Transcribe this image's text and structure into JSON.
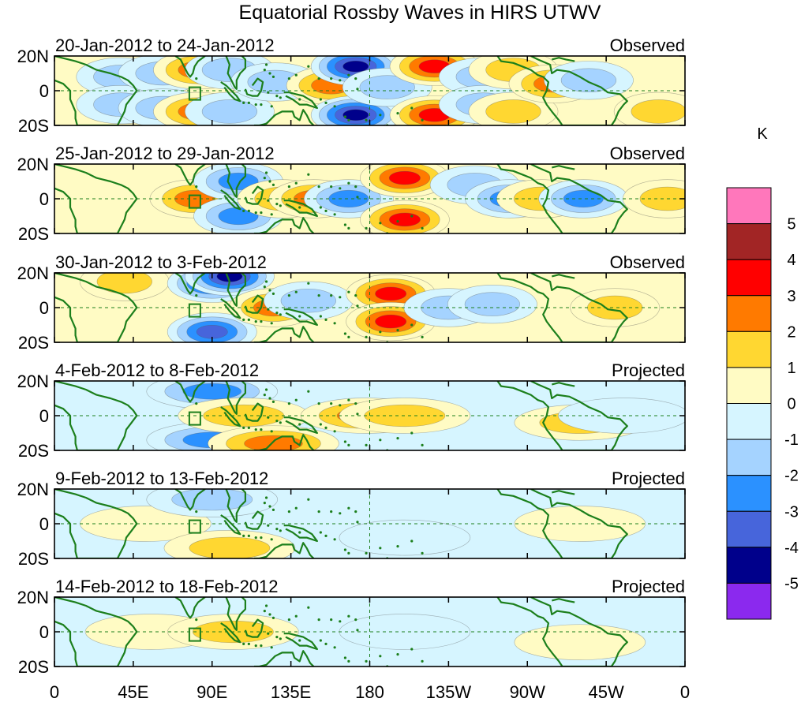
{
  "chart_data": {
    "type": "heatmap",
    "title": "Equatorial Rossby Waves in HIRS UTWV",
    "unit": "K",
    "x_ticks": [
      "0",
      "45E",
      "90E",
      "135E",
      "180",
      "135W",
      "90W",
      "45W",
      "0"
    ],
    "x_range_deg_east": [
      0,
      360
    ],
    "y_ticks": [
      "20N",
      "0",
      "20S"
    ],
    "y_range_deg": [
      -20,
      20
    ],
    "panels": [
      {
        "period": "20-Jan-2012 to 24-Jan-2012",
        "status": "Observed",
        "anomalies": [
          {
            "lon": 38,
            "lat": 8,
            "value": -1.5
          },
          {
            "lon": 38,
            "lat": -8,
            "value": -1.5
          },
          {
            "lon": 62,
            "lat": 10,
            "value": -1.5
          },
          {
            "lon": 62,
            "lat": -10,
            "value": -1.5
          },
          {
            "lon": 82,
            "lat": 12,
            "value": 2.5
          },
          {
            "lon": 82,
            "lat": -12,
            "value": 2.5
          },
          {
            "lon": 100,
            "lat": 12,
            "value": -1.5
          },
          {
            "lon": 100,
            "lat": -12,
            "value": -1.5
          },
          {
            "lon": 126,
            "lat": 5,
            "value": -1.5
          },
          {
            "lon": 158,
            "lat": 3,
            "value": 2.5
          },
          {
            "lon": 172,
            "lat": 14,
            "value": -4.5
          },
          {
            "lon": 172,
            "lat": -14,
            "value": -4.5
          },
          {
            "lon": 190,
            "lat": 2,
            "value": -1.5
          },
          {
            "lon": 217,
            "lat": 14,
            "value": 3.5
          },
          {
            "lon": 217,
            "lat": -14,
            "value": 3.5
          },
          {
            "lon": 245,
            "lat": 8,
            "value": -1.5
          },
          {
            "lon": 245,
            "lat": -8,
            "value": -1.5
          },
          {
            "lon": 262,
            "lat": 12,
            "value": 1.5
          },
          {
            "lon": 262,
            "lat": -12,
            "value": 1.5
          },
          {
            "lon": 285,
            "lat": 4,
            "value": 2.5
          },
          {
            "lon": 305,
            "lat": 6,
            "value": -1.5
          },
          {
            "lon": 345,
            "lat": -12,
            "value": 1.5
          }
        ]
      },
      {
        "period": "25-Jan-2012 to 29-Jan-2012",
        "status": "Observed",
        "anomalies": [
          {
            "lon": 80,
            "lat": 0,
            "value": 2.5
          },
          {
            "lon": 105,
            "lat": 10,
            "value": -2.5
          },
          {
            "lon": 105,
            "lat": -10,
            "value": -2.5
          },
          {
            "lon": 130,
            "lat": 0,
            "value": 1.5
          },
          {
            "lon": 148,
            "lat": 0,
            "value": 2.5
          },
          {
            "lon": 168,
            "lat": 0,
            "value": -2.5
          },
          {
            "lon": 200,
            "lat": 12,
            "value": 3.5
          },
          {
            "lon": 200,
            "lat": -12,
            "value": 3.5
          },
          {
            "lon": 240,
            "lat": 8,
            "value": -1.5
          },
          {
            "lon": 260,
            "lat": 0,
            "value": -2.5
          },
          {
            "lon": 278,
            "lat": 0,
            "value": 1.5
          },
          {
            "lon": 302,
            "lat": 0,
            "value": -2.5
          },
          {
            "lon": 350,
            "lat": 0,
            "value": 1.5
          }
        ]
      },
      {
        "period": "30-Jan-2012 to 3-Feb-2012",
        "status": "Observed",
        "anomalies": [
          {
            "lon": 40,
            "lat": 15,
            "value": 1.5
          },
          {
            "lon": 90,
            "lat": 14,
            "value": -3.5
          },
          {
            "lon": 90,
            "lat": -14,
            "value": -3.5
          },
          {
            "lon": 100,
            "lat": 18,
            "value": -4.5
          },
          {
            "lon": 125,
            "lat": 0,
            "value": 2.5
          },
          {
            "lon": 145,
            "lat": 4,
            "value": -1.5
          },
          {
            "lon": 192,
            "lat": 8,
            "value": 3.5
          },
          {
            "lon": 192,
            "lat": -8,
            "value": 3.5
          },
          {
            "lon": 225,
            "lat": 0,
            "value": -1.5
          },
          {
            "lon": 250,
            "lat": 2,
            "value": -1.5
          },
          {
            "lon": 320,
            "lat": 0,
            "value": 1.5
          }
        ]
      },
      {
        "period": "4-Feb-2012 to 8-Feb-2012",
        "status": "Projected",
        "anomalies": [
          {
            "lon": 90,
            "lat": 14,
            "value": -2.5
          },
          {
            "lon": 90,
            "lat": -14,
            "value": -2.5
          },
          {
            "lon": 108,
            "lat": 0,
            "value": 1.5
          },
          {
            "lon": 125,
            "lat": -16,
            "value": 2.5
          },
          {
            "lon": 178,
            "lat": 0,
            "value": 2.5
          },
          {
            "lon": 200,
            "lat": 0,
            "value": 1.5
          },
          {
            "lon": 300,
            "lat": -4,
            "value": 1.5
          },
          {
            "lon": 325,
            "lat": 0,
            "value": -0.5
          }
        ]
      },
      {
        "period": "9-Feb-2012 to 13-Feb-2012",
        "status": "Projected",
        "anomalies": [
          {
            "lon": 52,
            "lat": 0,
            "value": 0.5
          },
          {
            "lon": 90,
            "lat": 14,
            "value": -1.5
          },
          {
            "lon": 100,
            "lat": -14,
            "value": 1.5
          },
          {
            "lon": 200,
            "lat": -8,
            "value": -0.5
          },
          {
            "lon": 300,
            "lat": 0,
            "value": 0.5
          }
        ]
      },
      {
        "period": "14-Feb-2012 to 18-Feb-2012",
        "status": "Projected",
        "anomalies": [
          {
            "lon": 55,
            "lat": 0,
            "value": 0.5
          },
          {
            "lon": 102,
            "lat": 0,
            "value": 1.5
          },
          {
            "lon": 200,
            "lat": 0,
            "value": -0.5
          },
          {
            "lon": 300,
            "lat": -6,
            "value": 0.5
          }
        ]
      }
    ],
    "colorbar": {
      "labels": [
        "5",
        "4",
        "3",
        "2",
        "1",
        "0",
        "-1",
        "-2",
        "-3",
        "-4",
        "-5"
      ],
      "colors": [
        "#ff77bb",
        "#a22525",
        "#ff0000",
        "#ff7a00",
        "#ffd731",
        "#fffbc4",
        "#d6f5ff",
        "#a5d3ff",
        "#2b91ff",
        "#4765db",
        "#00008b",
        "#8b29ee"
      ]
    }
  }
}
